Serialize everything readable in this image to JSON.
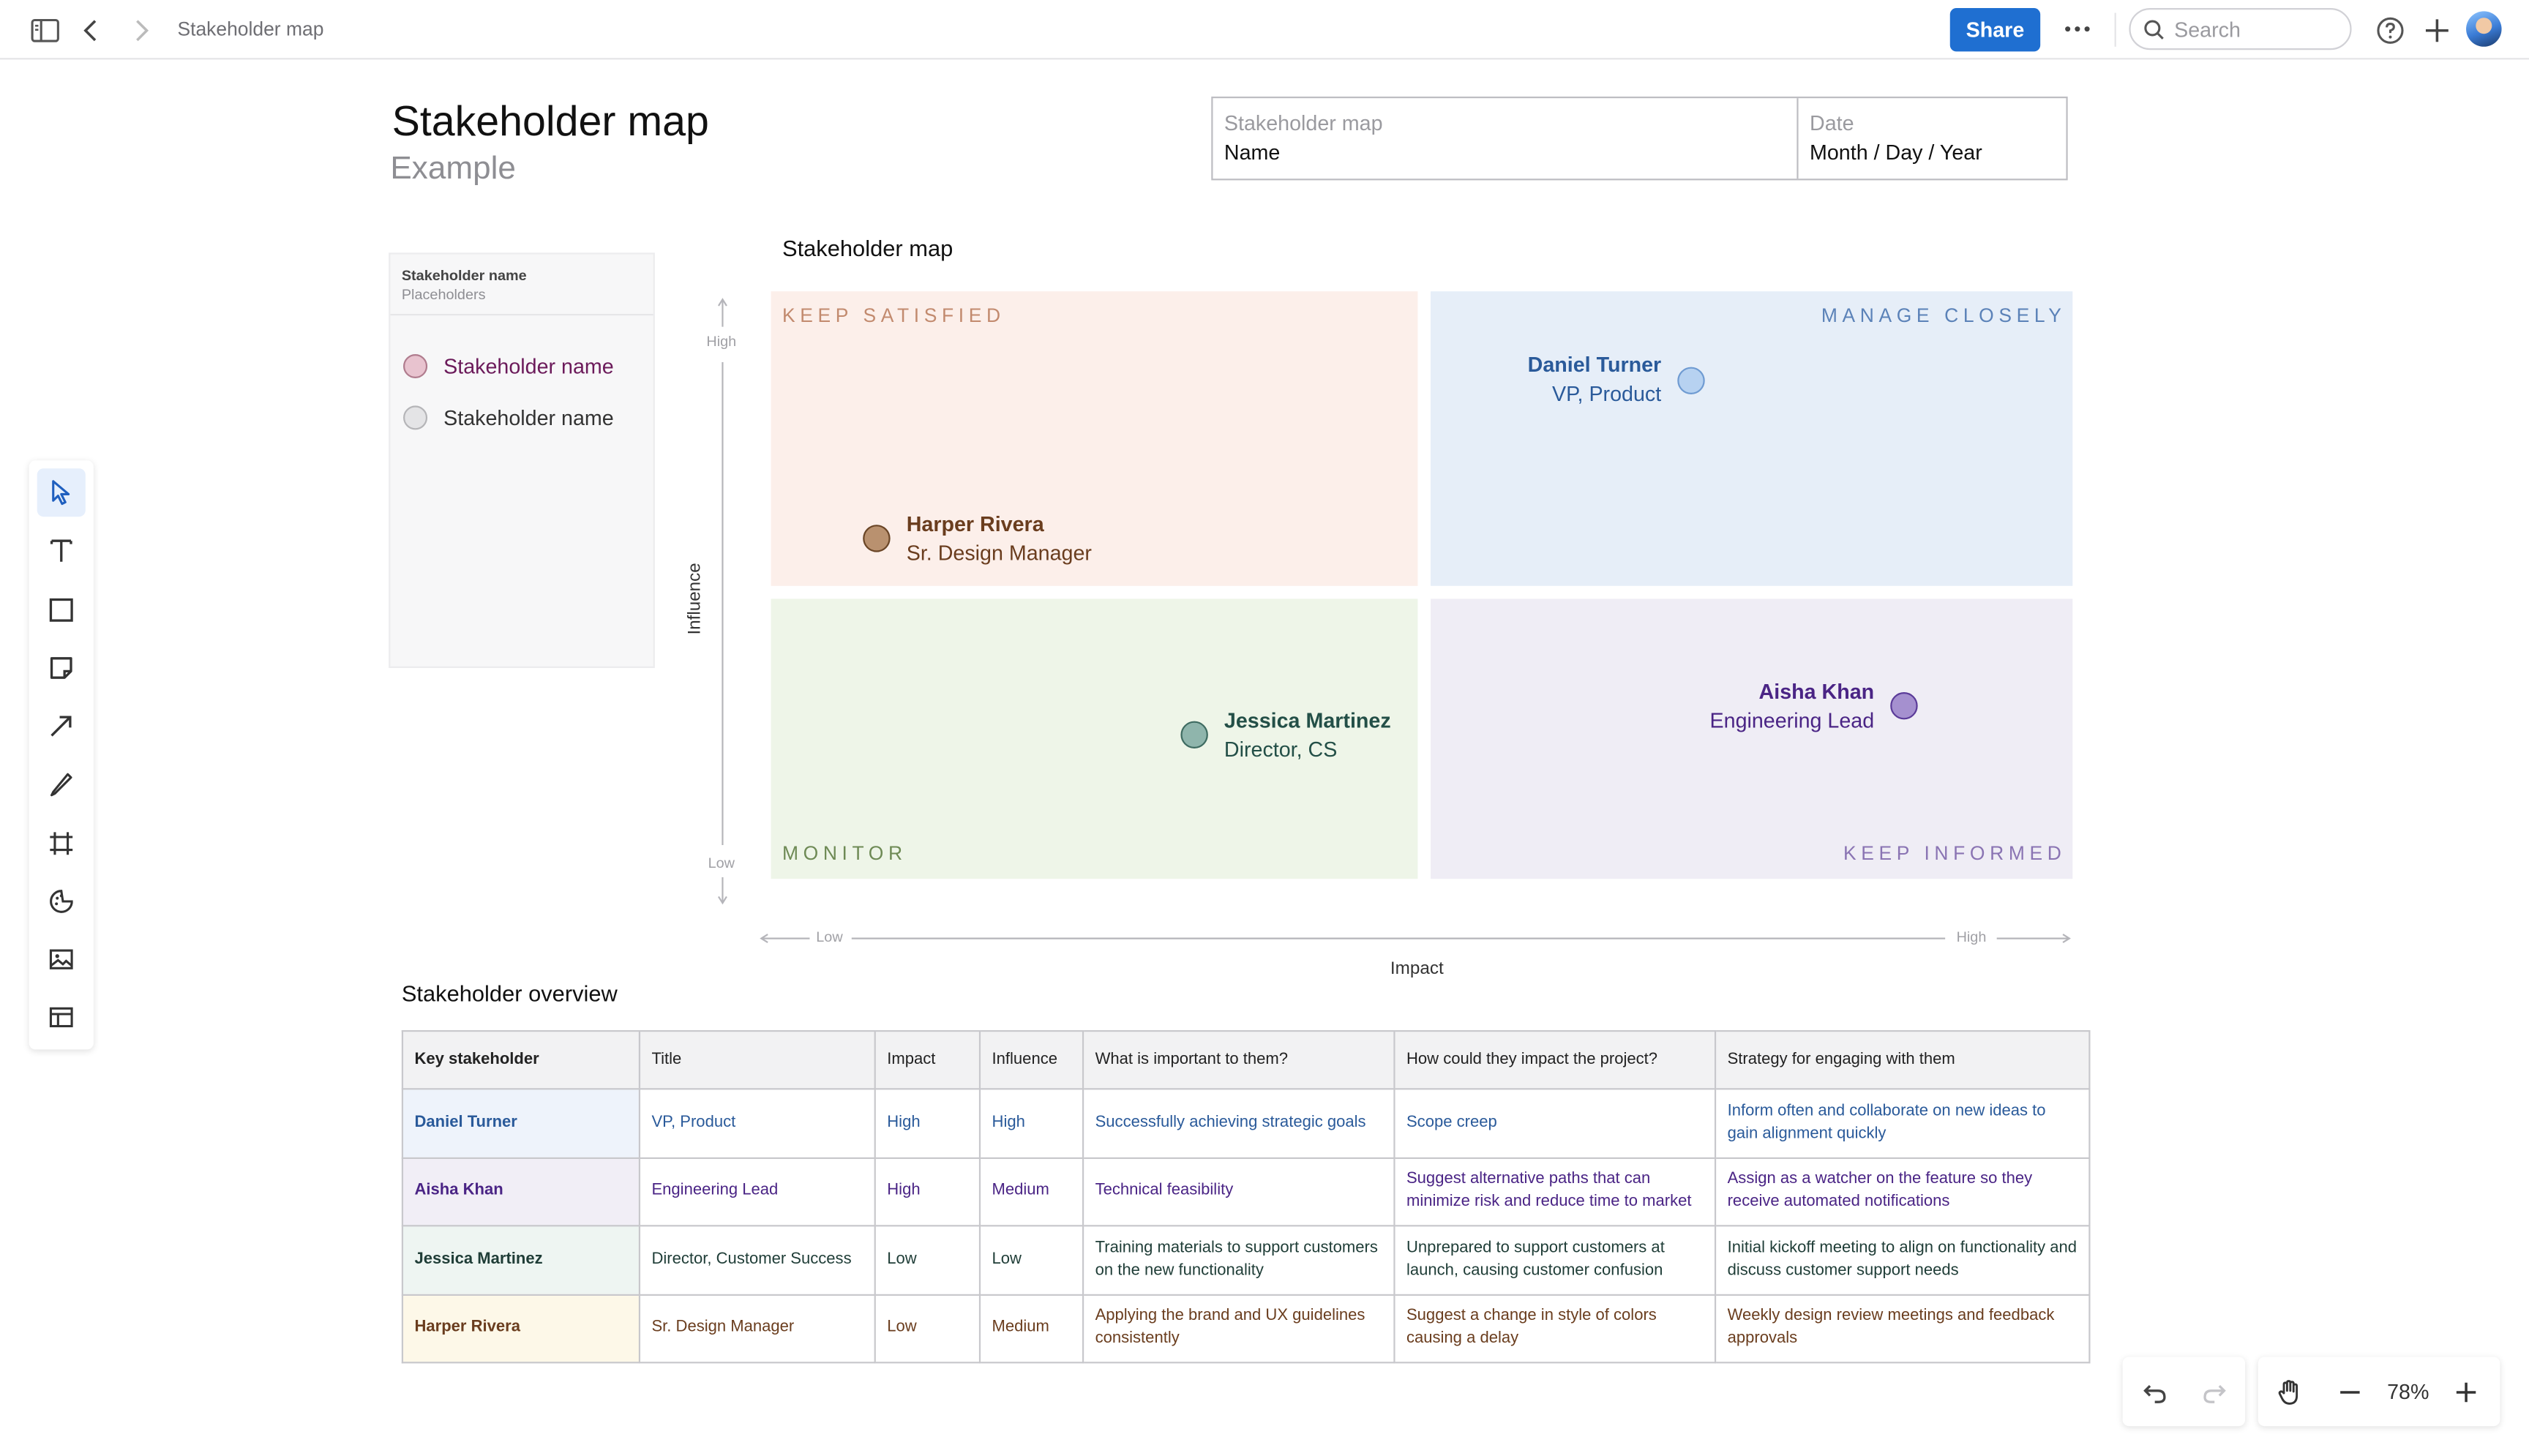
{
  "topbar": {
    "breadcrumb": "Stakeholder map",
    "share_label": "Share",
    "search_placeholder": "Search"
  },
  "page": {
    "title": "Stakeholder map",
    "subtitle": "Example"
  },
  "meta": {
    "left_label": "Stakeholder map",
    "left_value": "Name",
    "right_label": "Date",
    "right_value": "Month / Day / Year"
  },
  "legend": {
    "header_title": "Stakeholder name",
    "header_sub": "Placeholders",
    "items": [
      {
        "label": "Stakeholder name",
        "color": "#d9a8b8",
        "text_color": "#6b1a5a"
      },
      {
        "label": "Stakeholder name",
        "color": "#dcdcdc",
        "text_color": "#333333"
      }
    ]
  },
  "map": {
    "title": "Stakeholder map",
    "quadrants": {
      "keep_satisfied": {
        "label": "KEEP SATISFIED",
        "bg": "#fcefea",
        "color": "#c28a6e"
      },
      "manage_closely": {
        "label": "MANAGE CLOSELY",
        "bg": "#e6eef8",
        "color": "#5b82b8"
      },
      "monitor": {
        "label": "MONITOR",
        "bg": "#eef5e8",
        "color": "#6e8a55"
      },
      "keep_informed": {
        "label": "KEEP INFORMED",
        "bg": "#efedf5",
        "color": "#8a74b3"
      }
    },
    "y_axis": {
      "title": "Influence",
      "high": "High",
      "low": "Low"
    },
    "x_axis": {
      "title": "Impact",
      "low": "Low",
      "high": "High"
    },
    "people": {
      "daniel": {
        "name": "Daniel Turner",
        "role": "VP, Product",
        "color": "#a9c8ee",
        "text": "#2a5a9a"
      },
      "harper": {
        "name": "Harper Rivera",
        "role": "Sr. Design Manager",
        "color": "#b08a6a",
        "text": "#6a3d1e"
      },
      "jessica": {
        "name": "Jessica Martinez",
        "role": "Director, CS",
        "color": "#8fb5ac",
        "text": "#234f47"
      },
      "aisha": {
        "name": "Aisha Khan",
        "role": "Engineering Lead",
        "color": "#a590cf",
        "text": "#4a2485"
      }
    }
  },
  "overview": {
    "title": "Stakeholder overview",
    "headers": [
      "Key stakeholder",
      "Title",
      "Impact",
      "Influence",
      "What is important to them?",
      "How could they impact the project?",
      "Strategy for engaging with them"
    ],
    "rows": [
      {
        "name": "Daniel Turner",
        "title": "VP, Product",
        "impact": "High",
        "influence": "High",
        "important": "Successfully achieving strategic goals",
        "impact_project": "Scope creep",
        "strategy": "Inform often and collaborate on new ideas to gain alignment quickly",
        "name_bg": "#eef3fb",
        "color": "#2a5a9a"
      },
      {
        "name": "Aisha Khan",
        "title": "Engineering Lead",
        "impact": "High",
        "influence": "Medium",
        "important": "Technical feasibility",
        "impact_project": "Suggest alternative paths that can minimize risk and reduce time to market",
        "strategy": "Assign as a watcher on the feature so they receive automated notifications",
        "name_bg": "#f1eef6",
        "color": "#4a2485"
      },
      {
        "name": "Jessica Martinez",
        "title": "Director, Customer Success",
        "impact": "Low",
        "influence": "Low",
        "important": "Training materials to support customers on the new functionality",
        "impact_project": "Unprepared to support customers at launch, causing customer confusion",
        "strategy": "Initial kickoff meeting to align on functionality and discuss customer support needs",
        "name_bg": "#eef5f2",
        "color": "#1f3d37"
      },
      {
        "name": "Harper Rivera",
        "title": "Sr. Design Manager",
        "impact": "Low",
        "influence": "Medium",
        "important": "Applying the brand and UX guidelines consistently",
        "impact_project": "Suggest a change in style of colors causing a delay",
        "strategy": "Weekly design review meetings and feedback approvals",
        "name_bg": "#fdf8e8",
        "color": "#6a3d1e"
      }
    ]
  },
  "zoom": {
    "level": "78%"
  }
}
